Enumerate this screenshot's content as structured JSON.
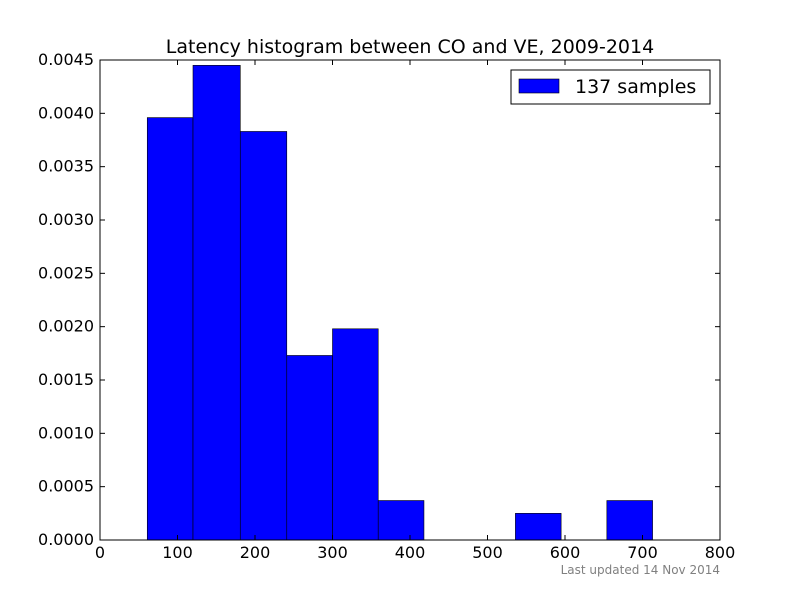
{
  "chart_data": {
    "type": "bar",
    "title": "Latency histogram between CO and VE, 2009-2014",
    "xlabel": "",
    "ylabel": "",
    "bins": [
      {
        "start": 61,
        "end": 120,
        "value": 0.00396
      },
      {
        "start": 120,
        "end": 181,
        "value": 0.00445
      },
      {
        "start": 181,
        "end": 241,
        "value": 0.00383
      },
      {
        "start": 241,
        "end": 300,
        "value": 0.00173
      },
      {
        "start": 300,
        "end": 359,
        "value": 0.00198
      },
      {
        "start": 359,
        "end": 418,
        "value": 0.00037
      },
      {
        "start": 418,
        "end": 477,
        "value": 0.0
      },
      {
        "start": 477,
        "end": 536,
        "value": 0.0
      },
      {
        "start": 536,
        "end": 595,
        "value": 0.00025
      },
      {
        "start": 595,
        "end": 654,
        "value": 0.0
      },
      {
        "start": 654,
        "end": 713,
        "value": 0.00037
      }
    ],
    "xlim": [
      0,
      800
    ],
    "ylim": [
      0,
      0.0045
    ],
    "xticks": [
      0,
      100,
      200,
      300,
      400,
      500,
      600,
      700,
      800
    ],
    "xtick_labels": [
      "0",
      "100",
      "200",
      "300",
      "400",
      "500",
      "600",
      "700",
      "800"
    ],
    "yticks": [
      0,
      0.0005,
      0.001,
      0.0015,
      0.002,
      0.0025,
      0.003,
      0.0035,
      0.004,
      0.0045
    ],
    "ytick_labels": [
      "0.0000",
      "0.0005",
      "0.0010",
      "0.0015",
      "0.0020",
      "0.0025",
      "0.0030",
      "0.0035",
      "0.0040",
      "0.0045"
    ],
    "series": [
      {
        "name": "137 samples",
        "color": "#0000ff"
      }
    ],
    "legend": {
      "position": "top-right",
      "label": "137 samples"
    },
    "grid": false,
    "footer": "Last updated 14 Nov 2014"
  }
}
